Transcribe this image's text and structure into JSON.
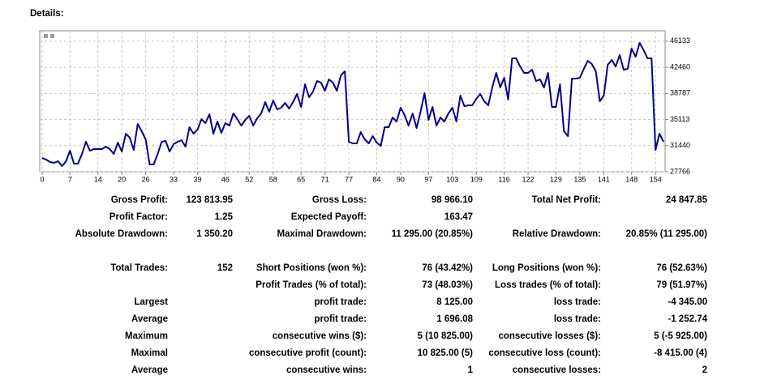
{
  "header": {
    "title": "Details:"
  },
  "chart_data": {
    "type": "line",
    "x": [
      0,
      1,
      2,
      3,
      4,
      5,
      6,
      7,
      8,
      9,
      10,
      11,
      12,
      13,
      14,
      15,
      16,
      17,
      18,
      19,
      20,
      21,
      22,
      23,
      24,
      25,
      26,
      27,
      28,
      29,
      30,
      31,
      32,
      33,
      34,
      35,
      36,
      37,
      38,
      39,
      40,
      41,
      42,
      43,
      44,
      45,
      46,
      47,
      48,
      49,
      50,
      51,
      52,
      53,
      54,
      55,
      56,
      57,
      58,
      59,
      60,
      61,
      62,
      63,
      64,
      65,
      66,
      67,
      68,
      69,
      70,
      71,
      72,
      73,
      74,
      75,
      76,
      77,
      78,
      79,
      80,
      81,
      82,
      83,
      84,
      85,
      86,
      87,
      88,
      89,
      90,
      91,
      92,
      93,
      94,
      95,
      96,
      97,
      98,
      99,
      100,
      101,
      102,
      103,
      104,
      105,
      106,
      107,
      108,
      109,
      110,
      111,
      112,
      113,
      114,
      115,
      116,
      117,
      118,
      119,
      120,
      121,
      122,
      123,
      124,
      125,
      126,
      127,
      128,
      129,
      130,
      131,
      132,
      133,
      134,
      135,
      136,
      137,
      138,
      139,
      140,
      141,
      142,
      143,
      144,
      145,
      146,
      147,
      148,
      149,
      150,
      151,
      152,
      153,
      154,
      155,
      156
    ],
    "values": [
      29700,
      29480,
      29130,
      29020,
      29250,
      28560,
      29250,
      30730,
      28910,
      28910,
      30270,
      31980,
      30730,
      30960,
      30960,
      30960,
      31300,
      30960,
      30270,
      31870,
      30620,
      33120,
      32550,
      30840,
      34490,
      33470,
      32330,
      28790,
      28790,
      30270,
      31980,
      32100,
      30620,
      31640,
      31980,
      32210,
      31300,
      34040,
      33120,
      33690,
      35180,
      34610,
      35860,
      33120,
      34830,
      33240,
      34610,
      34260,
      35970,
      35180,
      34260,
      35060,
      35630,
      34260,
      35290,
      35970,
      37570,
      36200,
      37800,
      36540,
      36770,
      37460,
      36660,
      37570,
      38710,
      36890,
      40080,
      38250,
      39050,
      40530,
      40310,
      39170,
      40760,
      40310,
      39170,
      41330,
      41900,
      31980,
      31760,
      31760,
      33350,
      32330,
      31760,
      32780,
      31870,
      31410,
      34040,
      34040,
      35400,
      34830,
      36770,
      35750,
      34260,
      35970,
      33920,
      36200,
      38820,
      35060,
      36890,
      34260,
      35400,
      34830,
      35970,
      36770,
      34830,
      38480,
      37000,
      37110,
      37110,
      38030,
      38710,
      37680,
      37110,
      39620,
      41670,
      39620,
      40990,
      37910,
      43730,
      43730,
      42590,
      41670,
      41670,
      42130,
      40530,
      40760,
      39620,
      41670,
      36890,
      36890,
      40080,
      33470,
      32780,
      40880,
      40880,
      40990,
      42240,
      43380,
      42930,
      41900,
      37680,
      38480,
      42810,
      43500,
      42590,
      44180,
      42130,
      42240,
      45090,
      43950,
      45890,
      44870,
      43730,
      43730,
      30840,
      33120,
      31980
    ],
    "color": "#00008b",
    "xlim": [
      -0.6,
      156.4
    ],
    "ylim": [
      27766,
      47600
    ],
    "xticks": [
      0,
      7,
      14,
      20,
      26,
      33,
      39,
      46,
      52,
      58,
      65,
      71,
      77,
      84,
      90,
      97,
      103,
      109,
      116,
      122,
      129,
      135,
      141,
      148,
      154
    ],
    "yticks": [
      27766,
      31440,
      35113,
      38787,
      42460,
      46133
    ],
    "grid": true
  },
  "table": {
    "rows": [
      [
        "Gross Profit:",
        "123 813.95",
        "Gross Loss:",
        "98 966.10",
        "Total Net Profit:",
        "24 847.85"
      ],
      [
        "Profit Factor:",
        "1.25",
        "Expected Payoff:",
        "163.47",
        null,
        null
      ],
      [
        "Absolute Drawdown:",
        "1 350.20",
        "Maximal Drawdown:",
        "11 295.00 (20.85%)",
        "Relative Drawdown:",
        "20.85% (11 295.00)"
      ],
      [
        "Total Trades:",
        "152",
        "Short Positions (won %):",
        "76 (43.42%)",
        "Long Positions (won %):",
        "76 (52.63%)"
      ],
      [
        null,
        null,
        "Profit Trades (% of total):",
        "73 (48.03%)",
        "Loss trades (% of total):",
        "79 (51.97%)"
      ],
      [
        "Largest",
        null,
        "profit trade:",
        "8 125.00",
        "loss trade:",
        "-4 345.00"
      ],
      [
        "Average",
        null,
        "profit trade:",
        "1 696.08",
        "loss trade:",
        "-1 252.74"
      ],
      [
        "Maximum",
        null,
        "consecutive wins ($):",
        "5 (10 825.00)",
        "consecutive losses ($):",
        "5 (-5 925.00)"
      ],
      [
        "Maximal",
        null,
        "consecutive profit (count):",
        "10 825.00 (5)",
        "consecutive loss (count):",
        "-8 415.00 (4)"
      ],
      [
        "Average",
        null,
        "consecutive wins:",
        "1",
        "consecutive losses:",
        "2"
      ]
    ]
  }
}
